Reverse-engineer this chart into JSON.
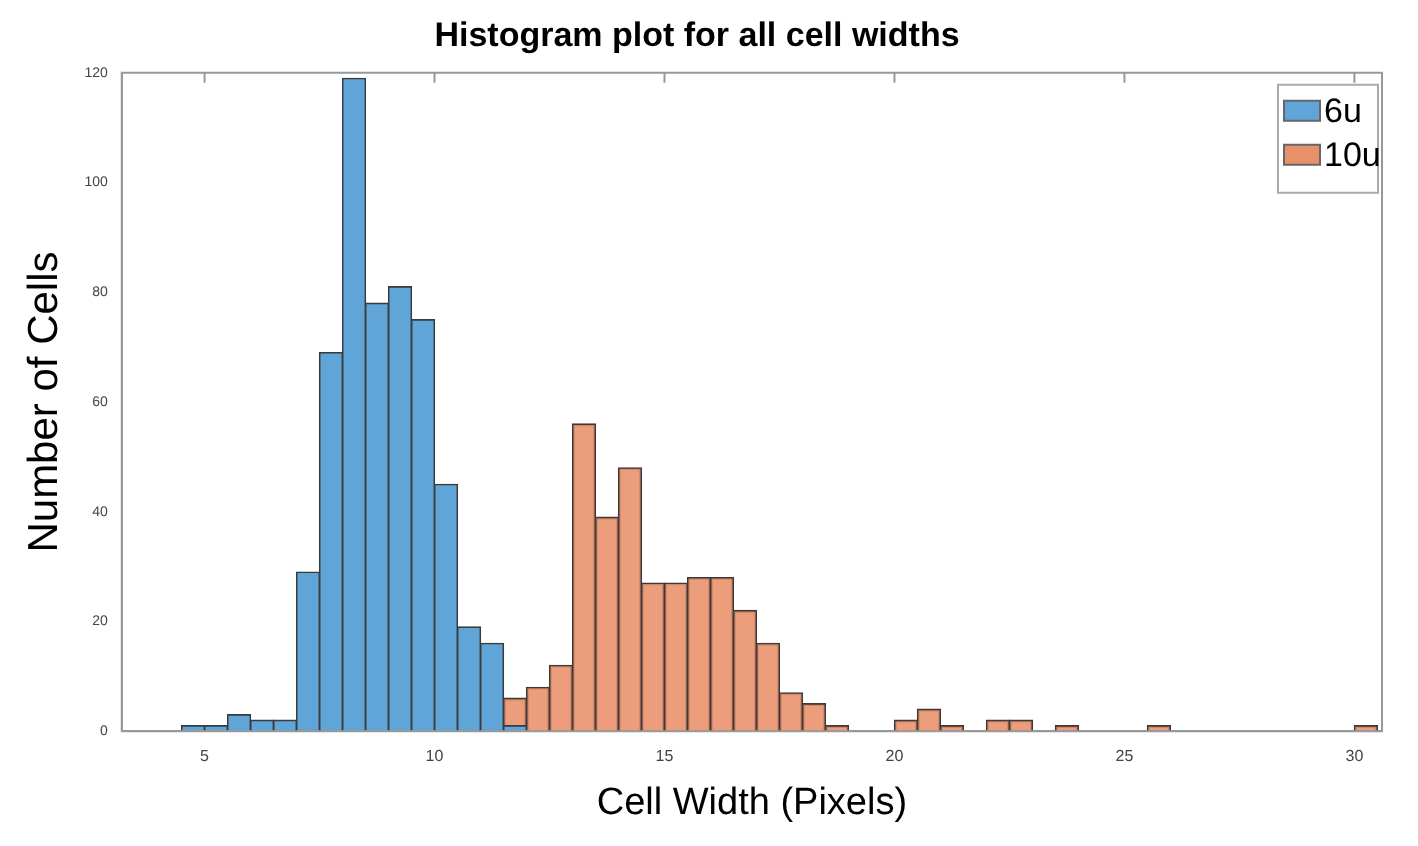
{
  "chart_data": {
    "type": "histogram",
    "title": "Histogram plot for all cell widths",
    "xlabel": "Cell Width (Pixels)",
    "ylabel": "Number of Cells",
    "xlim": [
      3.2,
      30.6
    ],
    "xticks": [
      5,
      10,
      15,
      20,
      25,
      30
    ],
    "ylim": [
      0,
      120
    ],
    "yticks": [
      0,
      20,
      40,
      60,
      80,
      100,
      120
    ],
    "grid": false,
    "legend": "top right",
    "bins": [
      4.5,
      5,
      5.5,
      6,
      6.5,
      7,
      7.5,
      8,
      8.5,
      9,
      9.5,
      10,
      10.5,
      11,
      11.5,
      12,
      12.5,
      13,
      13.5,
      14,
      14.5,
      15,
      15.5,
      16,
      16.5,
      17,
      17.5,
      18,
      18.5,
      19,
      19.5,
      20,
      20.5,
      21,
      21.5,
      22,
      22.5,
      23,
      23.5,
      24,
      24.5,
      25,
      25.5,
      26,
      26.5,
      27,
      27.5,
      28,
      28.5,
      29,
      29.5,
      30,
      30.5
    ],
    "series": [
      {
        "name": "6u",
        "color": "#5fa5d8",
        "values": [
          1,
          1,
          3,
          2,
          2,
          29,
          69,
          119,
          78,
          81,
          75,
          45,
          19,
          16,
          1,
          null,
          null,
          null,
          null,
          null,
          null,
          null,
          null,
          null,
          null,
          null,
          null,
          null,
          null,
          null,
          null,
          null,
          null,
          null,
          null,
          null,
          null,
          null,
          null,
          null,
          null,
          null,
          null,
          null,
          null,
          null,
          null,
          null,
          null,
          null,
          null,
          null
        ]
      },
      {
        "name": "10u",
        "color": "#e8906a",
        "values": [
          null,
          null,
          null,
          null,
          null,
          null,
          null,
          null,
          null,
          null,
          null,
          null,
          null,
          null,
          6,
          8,
          12,
          56,
          39,
          48,
          27,
          27,
          28,
          28,
          22,
          16,
          7,
          5,
          1,
          0,
          0,
          2,
          4,
          1,
          0,
          2,
          2,
          0,
          1,
          0,
          0,
          0,
          1,
          0,
          0,
          0,
          0,
          0,
          0,
          0,
          0,
          1
        ]
      }
    ]
  }
}
